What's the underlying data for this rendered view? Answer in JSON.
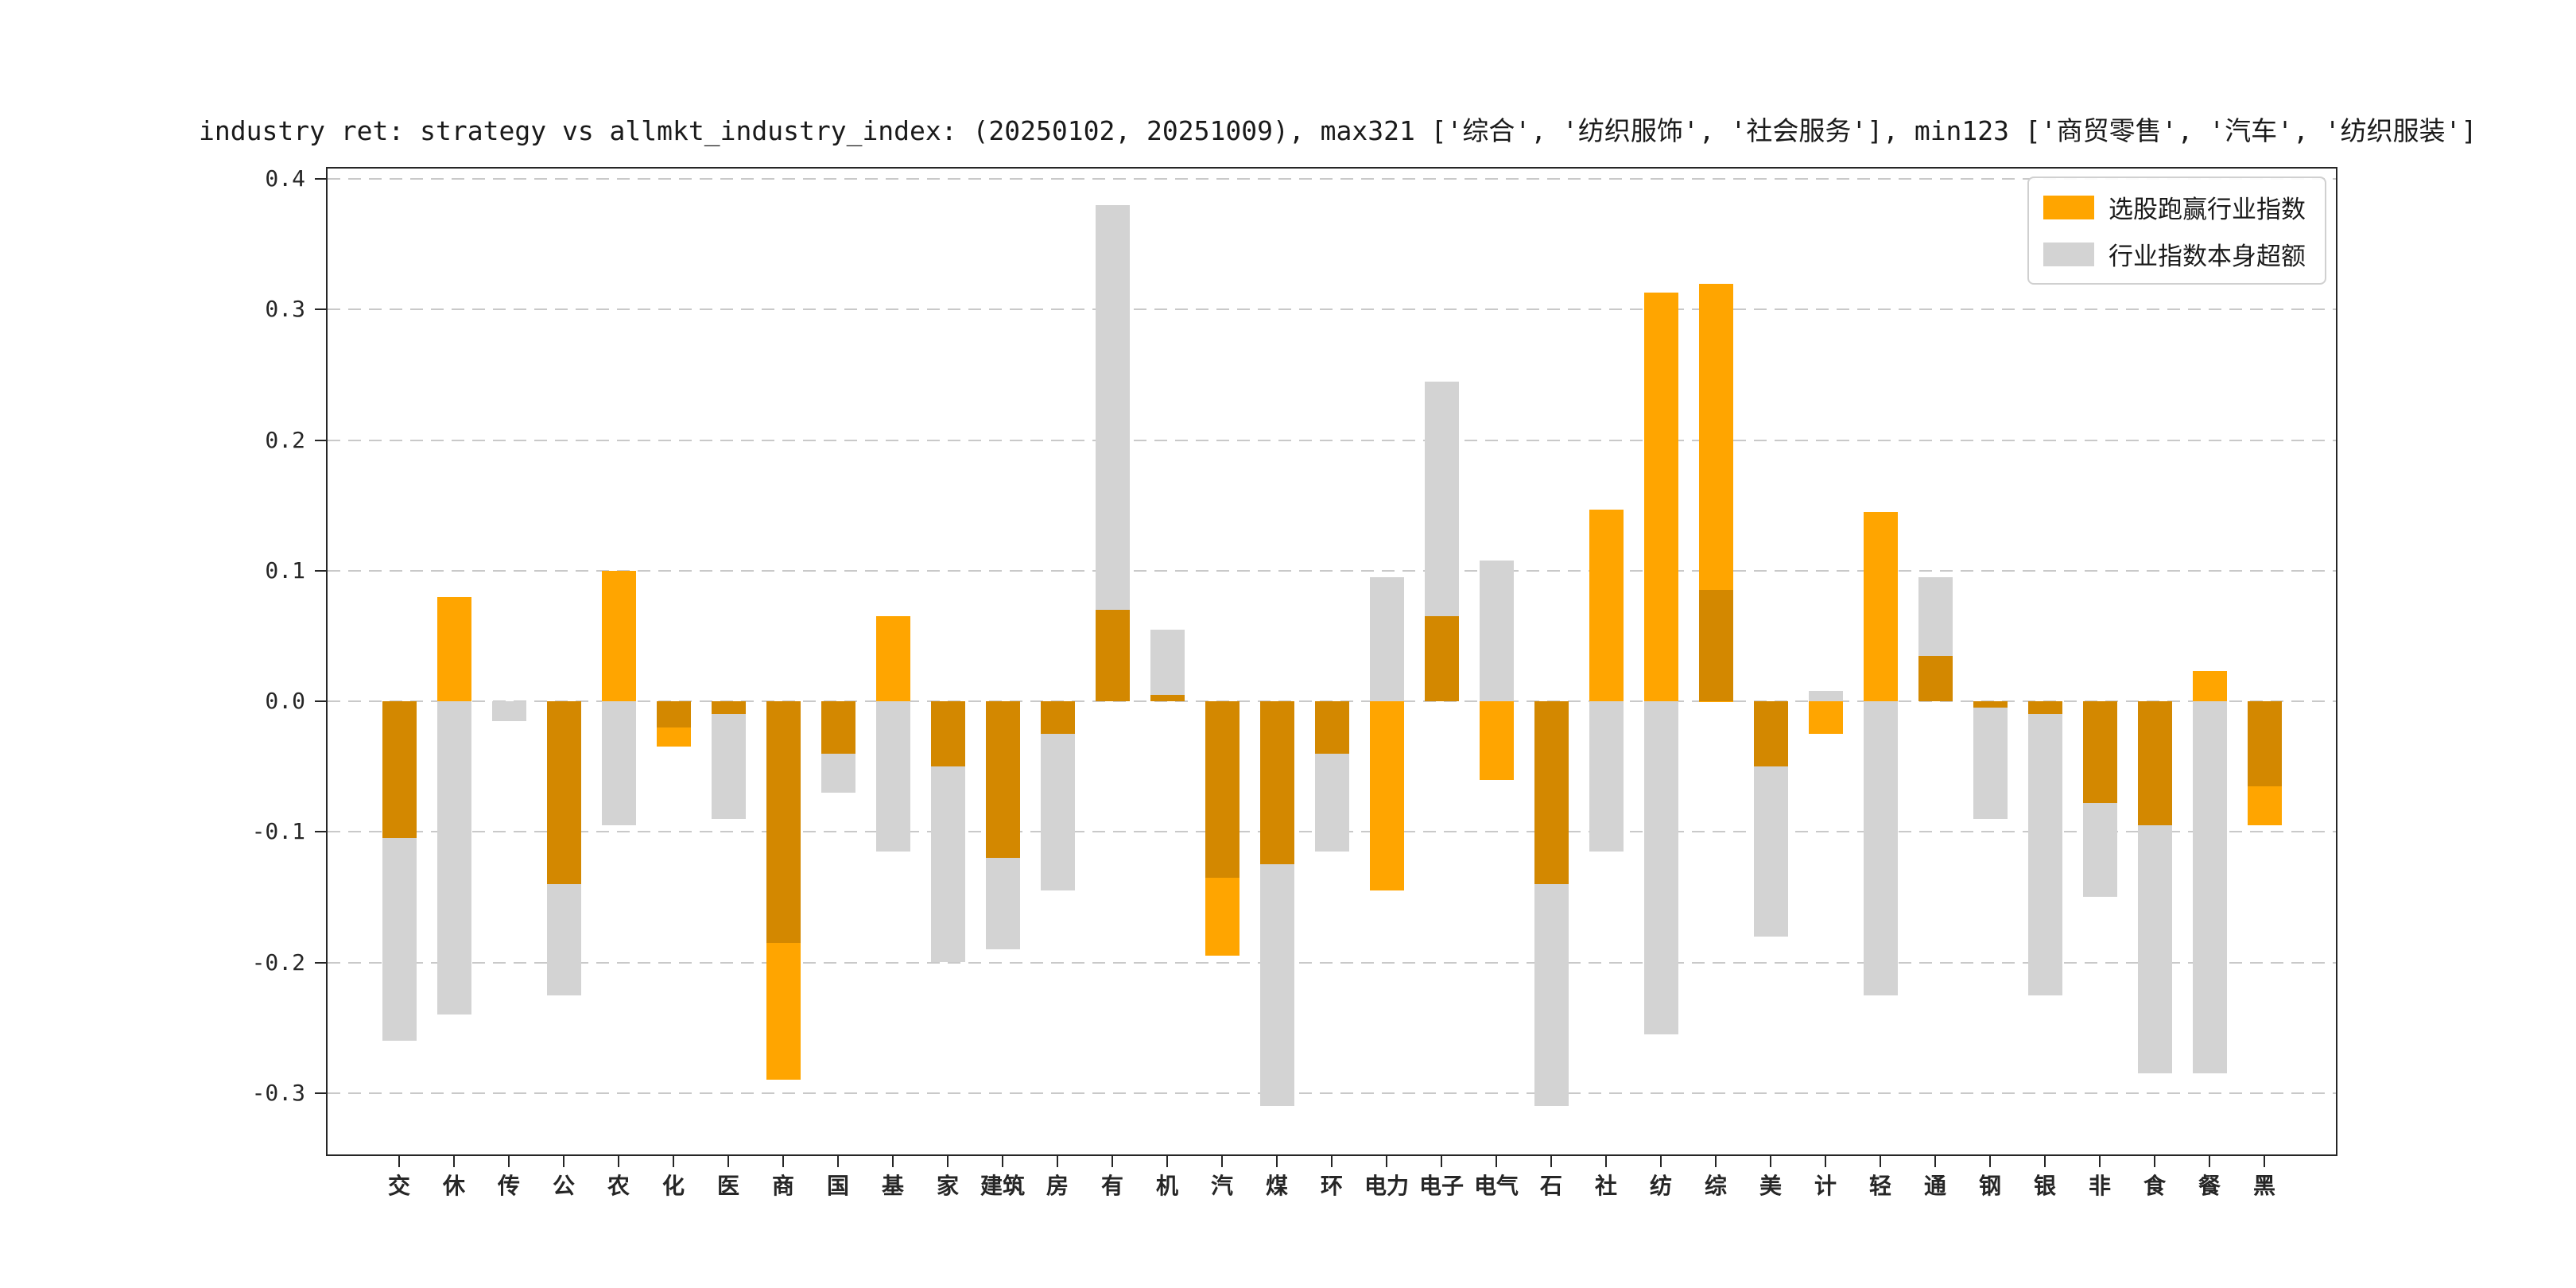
{
  "title": "industry ret: strategy vs allmkt_industry_index: (20250102, 20251009), max321 ['综合', '纺织服饰', '社会服务'], min123 ['商贸零售', '汽车', '纺织服装']",
  "legend": {
    "position": "upper right",
    "items": [
      {
        "label": "选股跑赢行业指数",
        "color": "#FFA500"
      },
      {
        "label": "行业指数本身超额",
        "color": "#D3D3D3"
      }
    ]
  },
  "colors": {
    "strategy_orange": "#FFA500",
    "index_gray": "#D3D3D3",
    "overlap_tan": "#D38800",
    "gridline": "#c9c9c9",
    "spine": "#262626"
  },
  "chart_data": {
    "type": "bar",
    "title": "industry ret: strategy vs allmkt_industry_index: (20250102, 20251009), max321 ['综合', '纺织服饰', '社会服务'], min123 ['商贸零售', '汽车', '纺织服装']",
    "xlabel": "",
    "ylabel": "",
    "ylim": [
      -0.347,
      0.408
    ],
    "yticks": [
      0.4,
      0.3,
      0.2,
      0.1,
      0.0,
      -0.1,
      -0.2,
      -0.3
    ],
    "ytick_labels": [
      "0.4",
      "0.3",
      "0.2",
      "0.1",
      "0.0",
      "-0.1",
      "-0.2",
      "-0.3"
    ],
    "grid": "dashed-horizontal",
    "legend_position": "upper right",
    "overlay_mode": "bars drawn at same x, overlap renders as dark tan",
    "categories": [
      "交",
      "休",
      "传",
      "公",
      "农",
      "化",
      "医",
      "商",
      "国",
      "基",
      "家",
      "建筑",
      "房",
      "有",
      "机",
      "汽",
      "煤",
      "环",
      "电力",
      "电子",
      "电气",
      "石",
      "社",
      "纺",
      "综",
      "美",
      "计",
      "轻",
      "通",
      "钢",
      "银",
      "非",
      "食",
      "餐",
      "黑"
    ],
    "series": [
      {
        "name": "选股跑赢行业指数",
        "color": "#FFA500",
        "values": [
          -0.105,
          0.08,
          0.0,
          -0.14,
          0.1,
          -0.035,
          -0.01,
          -0.29,
          -0.04,
          0.065,
          -0.05,
          -0.12,
          -0.025,
          0.07,
          0.005,
          -0.195,
          -0.125,
          -0.04,
          -0.145,
          0.065,
          -0.06,
          -0.14,
          0.147,
          0.313,
          0.32,
          -0.05,
          -0.025,
          0.145,
          0.035,
          -0.005,
          -0.01,
          -0.078,
          -0.095,
          0.023,
          -0.095
        ]
      },
      {
        "name": "行业指数本身超额",
        "color": "#D3D3D3",
        "values": [
          -0.26,
          -0.24,
          -0.015,
          -0.225,
          -0.095,
          -0.02,
          -0.09,
          -0.185,
          -0.07,
          -0.115,
          -0.2,
          -0.19,
          -0.145,
          0.38,
          0.055,
          -0.135,
          -0.31,
          -0.115,
          0.095,
          0.245,
          0.108,
          -0.31,
          -0.115,
          -0.255,
          0.085,
          -0.18,
          0.008,
          -0.225,
          0.095,
          -0.09,
          -0.225,
          -0.15,
          -0.285,
          -0.285,
          -0.065
        ]
      }
    ]
  }
}
